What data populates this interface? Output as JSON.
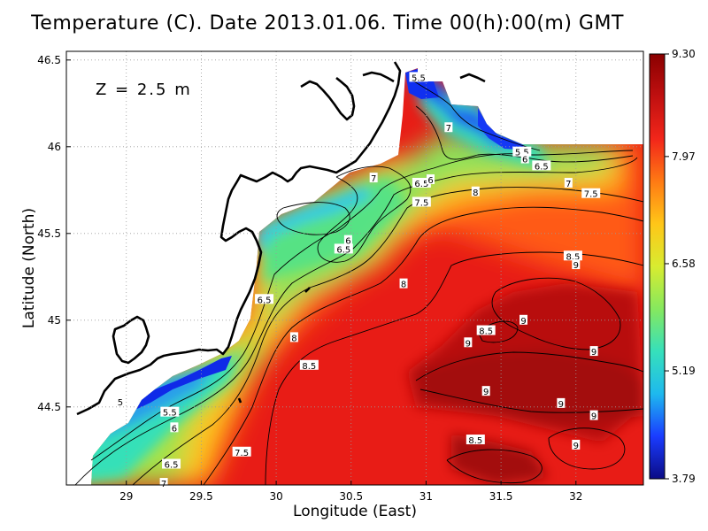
{
  "title": "Temperature (C). Date 2013.01.06. Time 00(h):00(m) GMT",
  "annotation": "Z = 2.5 m",
  "chart_data": {
    "type": "heatmap",
    "title": "Temperature (C). Date 2013.01.06. Time 00(h):00(m) GMT",
    "xlabel": "Longitude (East)",
    "ylabel": "Latitude (North)",
    "xlim": [
      28.6,
      32.45
    ],
    "ylim": [
      44.05,
      46.55
    ],
    "x_ticks": [
      "29",
      "29.5",
      "30",
      "30.5",
      "31",
      "31.5",
      "32"
    ],
    "y_ticks": [
      "44.5",
      "45",
      "45.5",
      "46",
      "46.5"
    ],
    "grid": true,
    "colorbar": {
      "ticks": [
        "3.79",
        "5.19",
        "6.58",
        "7.97",
        "9.30"
      ],
      "min": 3.79,
      "max": 9.3,
      "colors": [
        "#0b0b85",
        "#1a3cff",
        "#1eb9ee",
        "#36e0bb",
        "#86e85e",
        "#d8ec30",
        "#ffc618",
        "#ff7a14",
        "#f2261a",
        "#c01010",
        "#8a0000"
      ]
    },
    "contour_labels": [
      {
        "lon": 30.95,
        "lat": 46.4,
        "text": "5.5"
      },
      {
        "lon": 31.15,
        "lat": 46.11,
        "text": "7"
      },
      {
        "lon": 31.64,
        "lat": 45.97,
        "text": "5.5"
      },
      {
        "lon": 31.66,
        "lat": 45.93,
        "text": "6"
      },
      {
        "lon": 31.77,
        "lat": 45.89,
        "text": "6.5"
      },
      {
        "lon": 31.95,
        "lat": 45.79,
        "text": "7"
      },
      {
        "lon": 32.1,
        "lat": 45.73,
        "text": "7.5"
      },
      {
        "lon": 30.65,
        "lat": 45.82,
        "text": "7"
      },
      {
        "lon": 30.97,
        "lat": 45.79,
        "text": "6.5"
      },
      {
        "lon": 31.03,
        "lat": 45.81,
        "text": "6"
      },
      {
        "lon": 30.97,
        "lat": 45.68,
        "text": "7.5"
      },
      {
        "lon": 31.33,
        "lat": 45.74,
        "text": "8"
      },
      {
        "lon": 30.48,
        "lat": 45.46,
        "text": "6"
      },
      {
        "lon": 30.45,
        "lat": 45.41,
        "text": "6.5"
      },
      {
        "lon": 30.85,
        "lat": 45.21,
        "text": "8"
      },
      {
        "lon": 29.92,
        "lat": 45.12,
        "text": "6.5"
      },
      {
        "lon": 30.12,
        "lat": 44.9,
        "text": "8"
      },
      {
        "lon": 30.22,
        "lat": 44.74,
        "text": "8.5"
      },
      {
        "lon": 31.98,
        "lat": 45.37,
        "text": "8.5"
      },
      {
        "lon": 32.0,
        "lat": 45.32,
        "text": "9"
      },
      {
        "lon": 31.65,
        "lat": 45.0,
        "text": "9"
      },
      {
        "lon": 31.4,
        "lat": 44.94,
        "text": "8.5"
      },
      {
        "lon": 31.28,
        "lat": 44.87,
        "text": "9"
      },
      {
        "lon": 32.12,
        "lat": 44.82,
        "text": "9"
      },
      {
        "lon": 31.4,
        "lat": 44.59,
        "text": "9"
      },
      {
        "lon": 31.9,
        "lat": 44.52,
        "text": "9"
      },
      {
        "lon": 32.12,
        "lat": 44.45,
        "text": "9"
      },
      {
        "lon": 31.33,
        "lat": 44.31,
        "text": "8.5"
      },
      {
        "lon": 32.0,
        "lat": 44.28,
        "text": "9"
      },
      {
        "lon": 28.96,
        "lat": 44.53,
        "text": "5"
      },
      {
        "lon": 29.29,
        "lat": 44.47,
        "text": "5.5"
      },
      {
        "lon": 29.32,
        "lat": 44.38,
        "text": "6"
      },
      {
        "lon": 29.3,
        "lat": 44.17,
        "text": "6.5"
      },
      {
        "lon": 29.77,
        "lat": 44.24,
        "text": "7.5"
      },
      {
        "lon": 29.25,
        "lat": 44.06,
        "text": "7"
      }
    ]
  }
}
